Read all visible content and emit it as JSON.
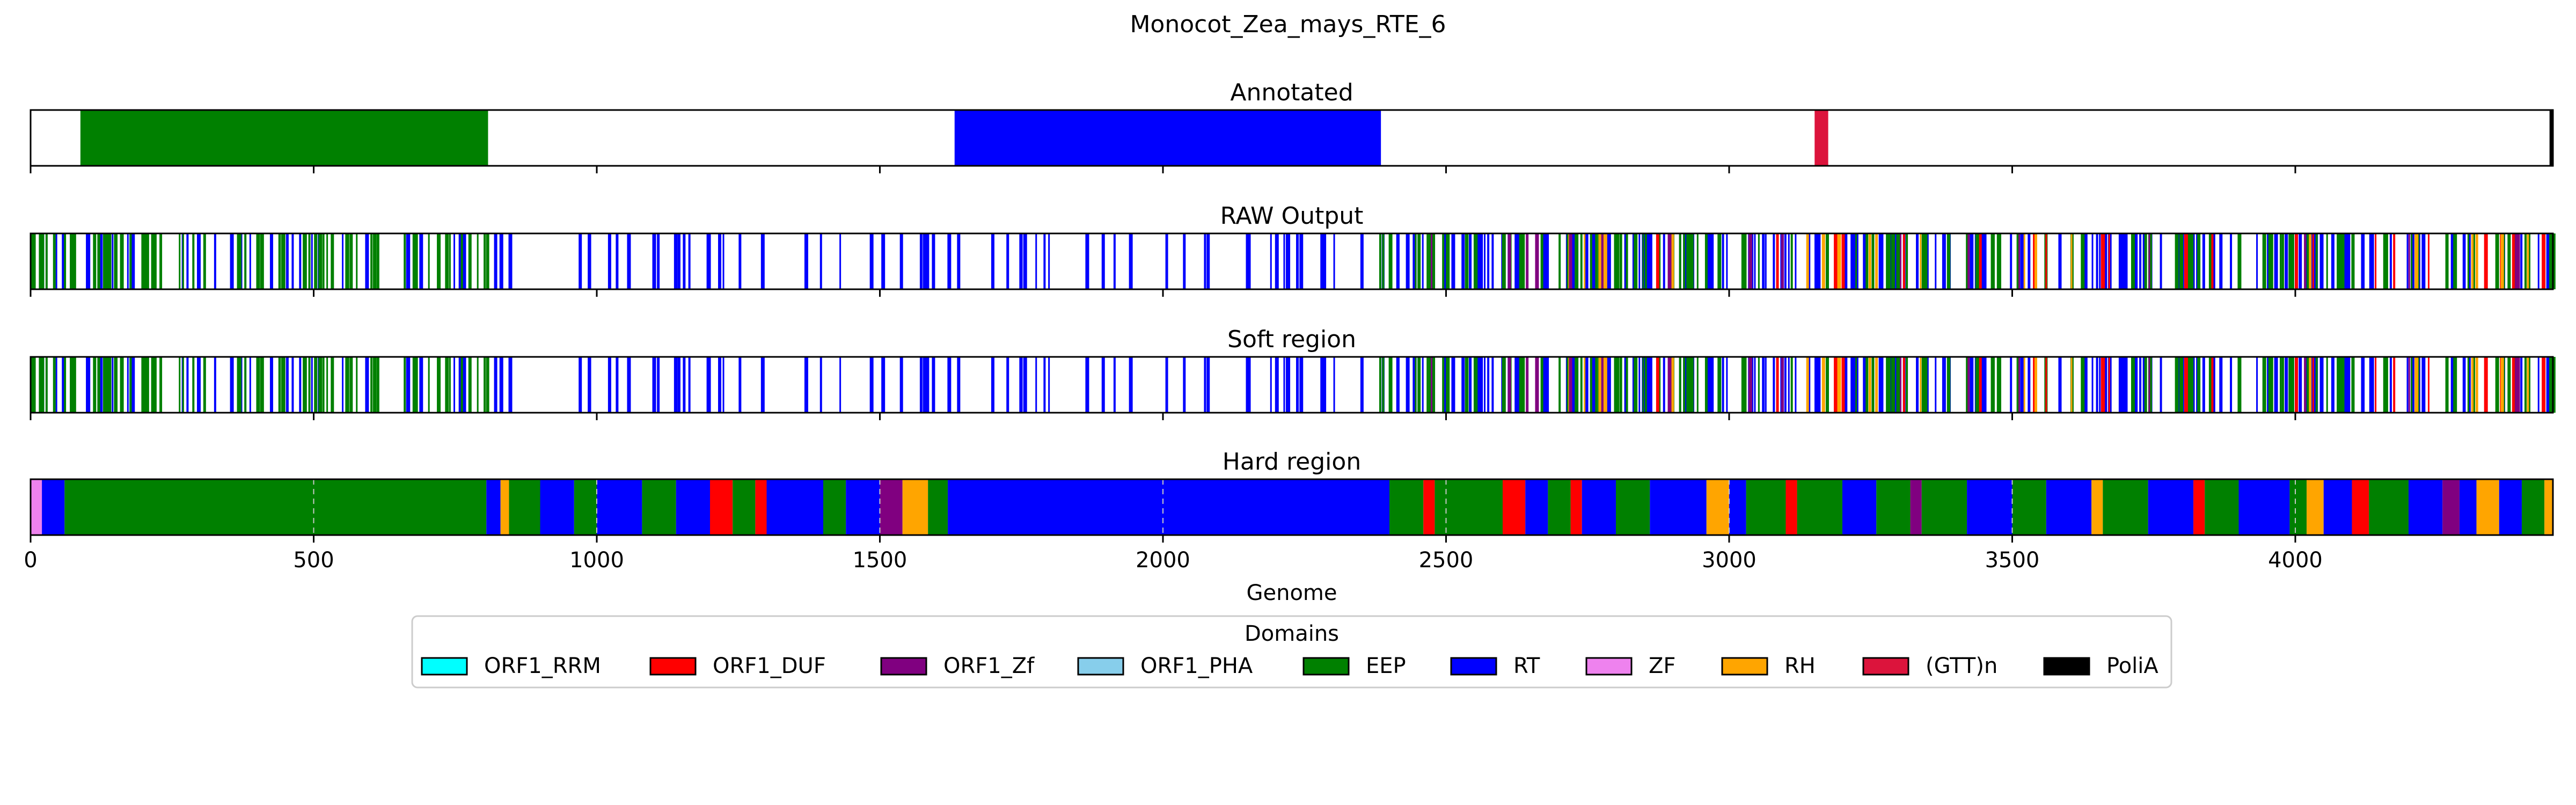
{
  "chart_data": {
    "type": "track",
    "title": "Monocot_Zea_mays_RTE_6",
    "xlabel": "Genome",
    "xlim": [
      0,
      4455
    ],
    "xticks": [
      {
        "value": 0,
        "label": "0"
      },
      {
        "value": 500,
        "label": "500"
      },
      {
        "value": 1000,
        "label": "1000"
      },
      {
        "value": 1500,
        "label": "1500"
      },
      {
        "value": 2000,
        "label": "2000"
      },
      {
        "value": 2500,
        "label": "2500"
      },
      {
        "value": 3000,
        "label": "3000"
      },
      {
        "value": 3500,
        "label": "3500"
      },
      {
        "value": 4000,
        "label": "4000"
      }
    ],
    "legend": {
      "title": "Domains",
      "placement": "bottom-center",
      "entries": [
        {
          "name": "ORF1_RRM",
          "color": "#00ffff"
        },
        {
          "name": "ORF1_DUF",
          "color": "#ff0000"
        },
        {
          "name": "ORF1_Zf",
          "color": "#800080"
        },
        {
          "name": "ORF1_PHA",
          "color": "#87ceeb"
        },
        {
          "name": "EEP",
          "color": "#008000"
        },
        {
          "name": "RT",
          "color": "#0000ff"
        },
        {
          "name": "ZF",
          "color": "#ee82ee"
        },
        {
          "name": "RH",
          "color": "#ffa500"
        },
        {
          "name": "(GTT)n",
          "color": "#dc143c"
        },
        {
          "name": "PoliA",
          "color": "#000000"
        }
      ]
    },
    "panels": [
      {
        "title": "Annotated",
        "style": "blocks",
        "segments": [
          {
            "domain": "EEP",
            "start": 88,
            "end": 808
          },
          {
            "domain": "RT",
            "start": 1632,
            "end": 2385
          },
          {
            "domain": "(GTT)n",
            "start": 3151,
            "end": 3175
          },
          {
            "domain": "PoliA",
            "start": 4449,
            "end": 4455
          }
        ]
      },
      {
        "title": "RAW Output",
        "style": "lines",
        "segments": [
          {
            "domain": "RT",
            "start": 0,
            "end": 1640,
            "density": 0.045
          },
          {
            "domain": "EEP",
            "start": 0,
            "end": 820,
            "density": 0.09
          },
          {
            "domain": "RT",
            "start": 1640,
            "end": 2380,
            "density": 0.04
          },
          {
            "domain": "RT",
            "start": 2380,
            "end": 4455,
            "density": 0.09
          },
          {
            "domain": "EEP",
            "start": 2380,
            "end": 4455,
            "density": 0.06
          },
          {
            "domain": "ORF1_DUF",
            "start": 2380,
            "end": 4455,
            "density": 0.012
          },
          {
            "domain": "RH",
            "start": 2380,
            "end": 4455,
            "density": 0.01
          },
          {
            "domain": "ORF1_Zf",
            "start": 2380,
            "end": 4455,
            "density": 0.008
          }
        ]
      },
      {
        "title": "Soft region",
        "style": "lines",
        "segments": [
          {
            "domain": "RT",
            "start": 0,
            "end": 1640,
            "density": 0.045
          },
          {
            "domain": "EEP",
            "start": 0,
            "end": 820,
            "density": 0.09
          },
          {
            "domain": "RT",
            "start": 1640,
            "end": 2380,
            "density": 0.04
          },
          {
            "domain": "RT",
            "start": 2380,
            "end": 4455,
            "density": 0.09
          },
          {
            "domain": "EEP",
            "start": 2380,
            "end": 4455,
            "density": 0.06
          },
          {
            "domain": "ORF1_DUF",
            "start": 2380,
            "end": 4455,
            "density": 0.012
          },
          {
            "domain": "RH",
            "start": 2380,
            "end": 4455,
            "density": 0.01
          },
          {
            "domain": "ORF1_Zf",
            "start": 2380,
            "end": 4455,
            "density": 0.008
          }
        ]
      },
      {
        "title": "Hard region",
        "style": "blocks",
        "segments": [
          {
            "domain": "ZF",
            "start": 0,
            "end": 20
          },
          {
            "domain": "RT",
            "start": 20,
            "end": 60
          },
          {
            "domain": "EEP",
            "start": 60,
            "end": 805
          },
          {
            "domain": "RT",
            "start": 805,
            "end": 830
          },
          {
            "domain": "RH",
            "start": 830,
            "end": 845
          },
          {
            "domain": "EEP",
            "start": 845,
            "end": 900
          },
          {
            "domain": "RT",
            "start": 900,
            "end": 960
          },
          {
            "domain": "EEP",
            "start": 960,
            "end": 1000
          },
          {
            "domain": "RT",
            "start": 1000,
            "end": 1080
          },
          {
            "domain": "EEP",
            "start": 1080,
            "end": 1140
          },
          {
            "domain": "RT",
            "start": 1140,
            "end": 1200
          },
          {
            "domain": "ORF1_DUF",
            "start": 1200,
            "end": 1240
          },
          {
            "domain": "EEP",
            "start": 1240,
            "end": 1280
          },
          {
            "domain": "ORF1_DUF",
            "start": 1280,
            "end": 1300
          },
          {
            "domain": "RT",
            "start": 1300,
            "end": 1400
          },
          {
            "domain": "EEP",
            "start": 1400,
            "end": 1440
          },
          {
            "domain": "RT",
            "start": 1440,
            "end": 1500
          },
          {
            "domain": "ORF1_Zf",
            "start": 1500,
            "end": 1540
          },
          {
            "domain": "RH",
            "start": 1540,
            "end": 1585
          },
          {
            "domain": "EEP",
            "start": 1585,
            "end": 1620
          },
          {
            "domain": "RT",
            "start": 1620,
            "end": 2400
          },
          {
            "domain": "EEP",
            "start": 2400,
            "end": 2460
          },
          {
            "domain": "ORF1_DUF",
            "start": 2460,
            "end": 2480
          },
          {
            "domain": "EEP",
            "start": 2480,
            "end": 2600
          },
          {
            "domain": "ORF1_DUF",
            "start": 2600,
            "end": 2640
          },
          {
            "domain": "RT",
            "start": 2640,
            "end": 2680
          },
          {
            "domain": "EEP",
            "start": 2680,
            "end": 2720
          },
          {
            "domain": "ORF1_DUF",
            "start": 2720,
            "end": 2740
          },
          {
            "domain": "RT",
            "start": 2740,
            "end": 2800
          },
          {
            "domain": "EEP",
            "start": 2800,
            "end": 2860
          },
          {
            "domain": "RT",
            "start": 2860,
            "end": 2960
          },
          {
            "domain": "RH",
            "start": 2960,
            "end": 3000
          },
          {
            "domain": "RT",
            "start": 3000,
            "end": 3030
          },
          {
            "domain": "EEP",
            "start": 3030,
            "end": 3100
          },
          {
            "domain": "ORF1_DUF",
            "start": 3100,
            "end": 3120
          },
          {
            "domain": "EEP",
            "start": 3120,
            "end": 3200
          },
          {
            "domain": "RT",
            "start": 3200,
            "end": 3260
          },
          {
            "domain": "EEP",
            "start": 3260,
            "end": 3320
          },
          {
            "domain": "ORF1_Zf",
            "start": 3320,
            "end": 3340
          },
          {
            "domain": "EEP",
            "start": 3340,
            "end": 3420
          },
          {
            "domain": "RT",
            "start": 3420,
            "end": 3500
          },
          {
            "domain": "EEP",
            "start": 3500,
            "end": 3560
          },
          {
            "domain": "RT",
            "start": 3560,
            "end": 3640
          },
          {
            "domain": "RH",
            "start": 3640,
            "end": 3660
          },
          {
            "domain": "EEP",
            "start": 3660,
            "end": 3740
          },
          {
            "domain": "RT",
            "start": 3740,
            "end": 3820
          },
          {
            "domain": "ORF1_DUF",
            "start": 3820,
            "end": 3840
          },
          {
            "domain": "EEP",
            "start": 3840,
            "end": 3900
          },
          {
            "domain": "RT",
            "start": 3900,
            "end": 3990
          },
          {
            "domain": "EEP",
            "start": 3990,
            "end": 4020
          },
          {
            "domain": "RH",
            "start": 4020,
            "end": 4050
          },
          {
            "domain": "RT",
            "start": 4050,
            "end": 4100
          },
          {
            "domain": "ORF1_DUF",
            "start": 4100,
            "end": 4130
          },
          {
            "domain": "EEP",
            "start": 4130,
            "end": 4200
          },
          {
            "domain": "RT",
            "start": 4200,
            "end": 4260
          },
          {
            "domain": "ORF1_Zf",
            "start": 4260,
            "end": 4290
          },
          {
            "domain": "RT",
            "start": 4290,
            "end": 4320
          },
          {
            "domain": "RH",
            "start": 4320,
            "end": 4360
          },
          {
            "domain": "RT",
            "start": 4360,
            "end": 4400
          },
          {
            "domain": "EEP",
            "start": 4400,
            "end": 4440
          },
          {
            "domain": "RH",
            "start": 4440,
            "end": 4455
          }
        ]
      }
    ]
  }
}
